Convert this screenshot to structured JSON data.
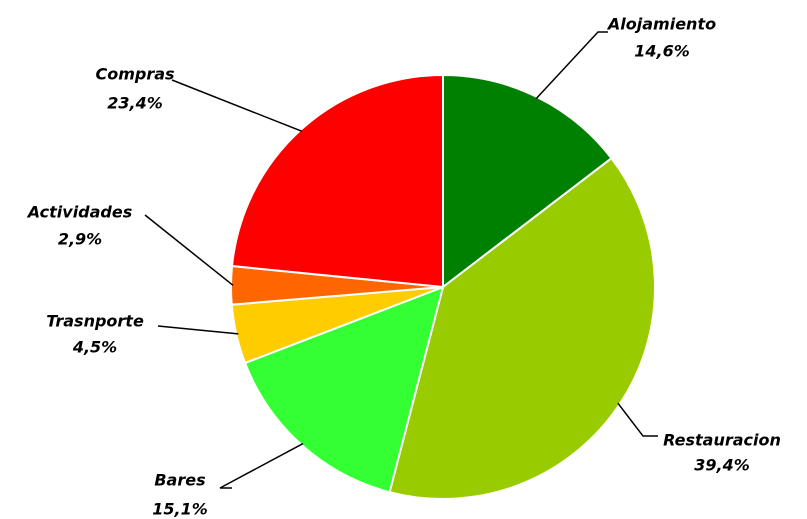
{
  "chart_data": {
    "type": "pie",
    "categories": [
      "Alojamiento",
      "Restauracion",
      "Bares",
      "Trasnporte",
      "Actividades",
      "Compras"
    ],
    "values": [
      14.6,
      39.4,
      15.1,
      4.5,
      2.9,
      23.4
    ],
    "value_labels": [
      "14,6%",
      "39,4%",
      "15,1%",
      "4,5%",
      "2,9%",
      "23,4%"
    ],
    "colors": [
      "#008000",
      "#99cc00",
      "#33ff33",
      "#ffcc00",
      "#ff6600",
      "#ff0000"
    ]
  }
}
